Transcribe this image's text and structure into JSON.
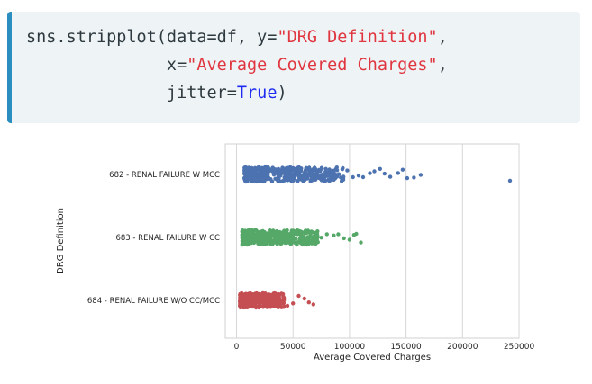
{
  "code": {
    "lines": [
      [
        {
          "t": "plain",
          "v": "sns.stripplot(data=df, y="
        },
        {
          "t": "str",
          "v": "\"DRG Definition\""
        },
        {
          "t": "plain",
          "v": ","
        }
      ],
      [
        {
          "t": "plain",
          "v": "              x="
        },
        {
          "t": "str",
          "v": "\"Average Covered Charges\""
        },
        {
          "t": "plain",
          "v": ","
        }
      ],
      [
        {
          "t": "plain",
          "v": "              jitter="
        },
        {
          "t": "kw",
          "v": "True"
        },
        {
          "t": "plain",
          "v": ")"
        }
      ]
    ],
    "colors": {
      "plain": "#2e3a3f",
      "string": "#e0363f",
      "keyword": "#1d2cf0",
      "accent": "#2a8fc0"
    }
  },
  "chart_data": {
    "type": "scatter",
    "subtype": "stripplot",
    "xlabel": "Average Covered Charges",
    "ylabel": "DRG Definition",
    "xlim": [
      -10000,
      250000
    ],
    "xticks": [
      0,
      50000,
      100000,
      150000,
      200000,
      250000
    ],
    "xtick_labels": [
      "0",
      "50000",
      "100000",
      "150000",
      "200000",
      "250000"
    ],
    "grid": "x",
    "categories": [
      "682 - RENAL FAILURE W MCC",
      "683 - RENAL FAILURE W CC",
      "684 - RENAL FAILURE W/O CC/MCC"
    ],
    "series": [
      {
        "category": "682 - RENAL FAILURE W MCC",
        "color": "#4c72b0",
        "dense_range": [
          7000,
          95000
        ],
        "outliers": [
          98000,
          103000,
          108000,
          112000,
          118000,
          122000,
          127000,
          131000,
          136000,
          143000,
          147000,
          151000,
          157000,
          163000,
          242000
        ]
      },
      {
        "category": "683 - RENAL FAILURE W CC",
        "color": "#55a868",
        "dense_range": [
          5000,
          72000
        ],
        "outliers": [
          75000,
          80000,
          86000,
          90000,
          95000,
          100000,
          104000,
          106000,
          110000
        ]
      },
      {
        "category": "684 - RENAL FAILURE W/O CC/MCC",
        "color": "#c44e52",
        "dense_range": [
          3000,
          42000
        ],
        "outliers": [
          45000,
          50000,
          55000,
          60000,
          64000,
          68000
        ]
      }
    ]
  }
}
